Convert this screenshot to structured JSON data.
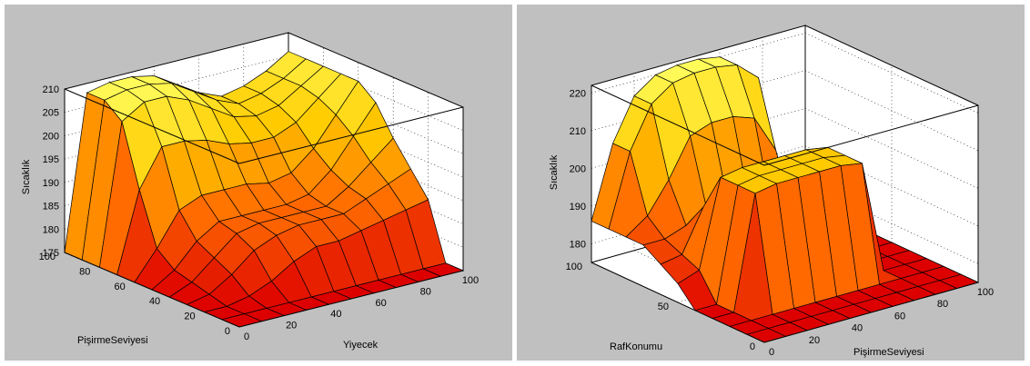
{
  "chart_data": [
    {
      "type": "surface",
      "title": "",
      "xlabel": "Yiyecek",
      "ylabel": "PişirmeSeviyesi",
      "zlabel": "Sıcaklık",
      "x_ticks": [
        "0",
        "20",
        "40",
        "60",
        "80",
        "100"
      ],
      "y_ticks": [
        "0",
        "20",
        "40",
        "60",
        "80",
        "100"
      ],
      "z_ticks": [
        "175",
        "180",
        "185",
        "190",
        "195",
        "200",
        "205",
        "210"
      ],
      "xlim": [
        0,
        100
      ],
      "ylim": [
        0,
        100
      ],
      "zlim": [
        175,
        210
      ],
      "grid": true,
      "colormap": [
        "#dd0000",
        "#ff6a00",
        "#ffcc00",
        "#ffff60"
      ],
      "x": [
        0,
        10,
        20,
        30,
        40,
        50,
        60,
        70,
        80,
        90,
        100
      ],
      "y": [
        0,
        10,
        20,
        30,
        40,
        50,
        60,
        70,
        80,
        90,
        100
      ],
      "z": [
        [
          175,
          175,
          175,
          175,
          175,
          175,
          175,
          175,
          175,
          175,
          175
        ],
        [
          175,
          175,
          175,
          175,
          175,
          175,
          175,
          175,
          175,
          175,
          175
        ],
        [
          175,
          175,
          176,
          178,
          181,
          183,
          183,
          184,
          185,
          186,
          187
        ],
        [
          175,
          176,
          179,
          183,
          185,
          186,
          186,
          186,
          188,
          190,
          192
        ],
        [
          175,
          177,
          181,
          185,
          186,
          186,
          186,
          186,
          189,
          193,
          197
        ],
        [
          175,
          178,
          183,
          186,
          186,
          186,
          186,
          187,
          191,
          197,
          203
        ],
        [
          175,
          181,
          188,
          190,
          190,
          190,
          189,
          190,
          194,
          200,
          206
        ],
        [
          175,
          192,
          200,
          200,
          199,
          197,
          196,
          196,
          198,
          202,
          206
        ],
        [
          175,
          205,
          208,
          208,
          206,
          203,
          200,
          199,
          200,
          203,
          206
        ],
        [
          175,
          208,
          209,
          209,
          208,
          205,
          202,
          200,
          201,
          203,
          206
        ],
        [
          175,
          208,
          209,
          209,
          208,
          205,
          202,
          200,
          201,
          203,
          206
        ]
      ]
    },
    {
      "type": "surface",
      "title": "",
      "xlabel": "PişirmeSeviyesi",
      "ylabel": "RafKonumu",
      "zlabel": "Sıcaklık",
      "x_ticks": [
        "0",
        "20",
        "40",
        "60",
        "80",
        "100"
      ],
      "y_ticks": [
        "0",
        "50",
        "100"
      ],
      "z_ticks": [
        "180",
        "190",
        "200",
        "210",
        "220"
      ],
      "xlim": [
        0,
        100
      ],
      "ylim": [
        0,
        100
      ],
      "zlim": [
        175,
        222
      ],
      "grid": true,
      "colormap": [
        "#dd0000",
        "#ff6a00",
        "#ffcc00",
        "#ffff60"
      ],
      "x": [
        0,
        10,
        20,
        30,
        40,
        50,
        60,
        70,
        80,
        90,
        100
      ],
      "y": [
        0,
        10,
        20,
        30,
        40,
        50,
        60,
        70,
        80,
        90,
        100
      ],
      "z": [
        [
          175,
          175,
          175,
          175,
          175,
          175,
          175,
          175,
          175,
          175,
          175
        ],
        [
          175,
          175,
          175,
          175,
          175,
          175,
          175,
          175,
          175,
          175,
          175
        ],
        [
          175,
          175,
          175,
          175,
          175,
          175,
          175,
          175,
          175,
          175,
          175
        ],
        [
          175,
          175,
          205,
          206,
          206,
          206,
          206,
          205,
          175,
          175,
          175
        ],
        [
          175,
          175,
          205,
          206,
          206,
          206,
          206,
          205,
          175,
          175,
          175
        ],
        [
          180,
          182,
          205,
          206,
          206,
          206,
          206,
          205,
          175,
          175,
          175
        ],
        [
          183,
          184,
          195,
          200,
          201,
          201,
          195,
          188,
          175,
          175,
          175
        ],
        [
          186,
          186,
          188,
          190,
          190,
          188,
          186,
          183,
          175,
          175,
          175
        ],
        [
          186,
          190,
          198,
          208,
          210,
          210,
          208,
          198,
          175,
          175,
          175
        ],
        [
          186,
          205,
          216,
          220,
          221,
          221,
          220,
          215,
          175,
          175,
          175
        ],
        [
          186,
          205,
          216,
          220,
          221,
          221,
          220,
          215,
          175,
          175,
          175
        ]
      ]
    }
  ]
}
